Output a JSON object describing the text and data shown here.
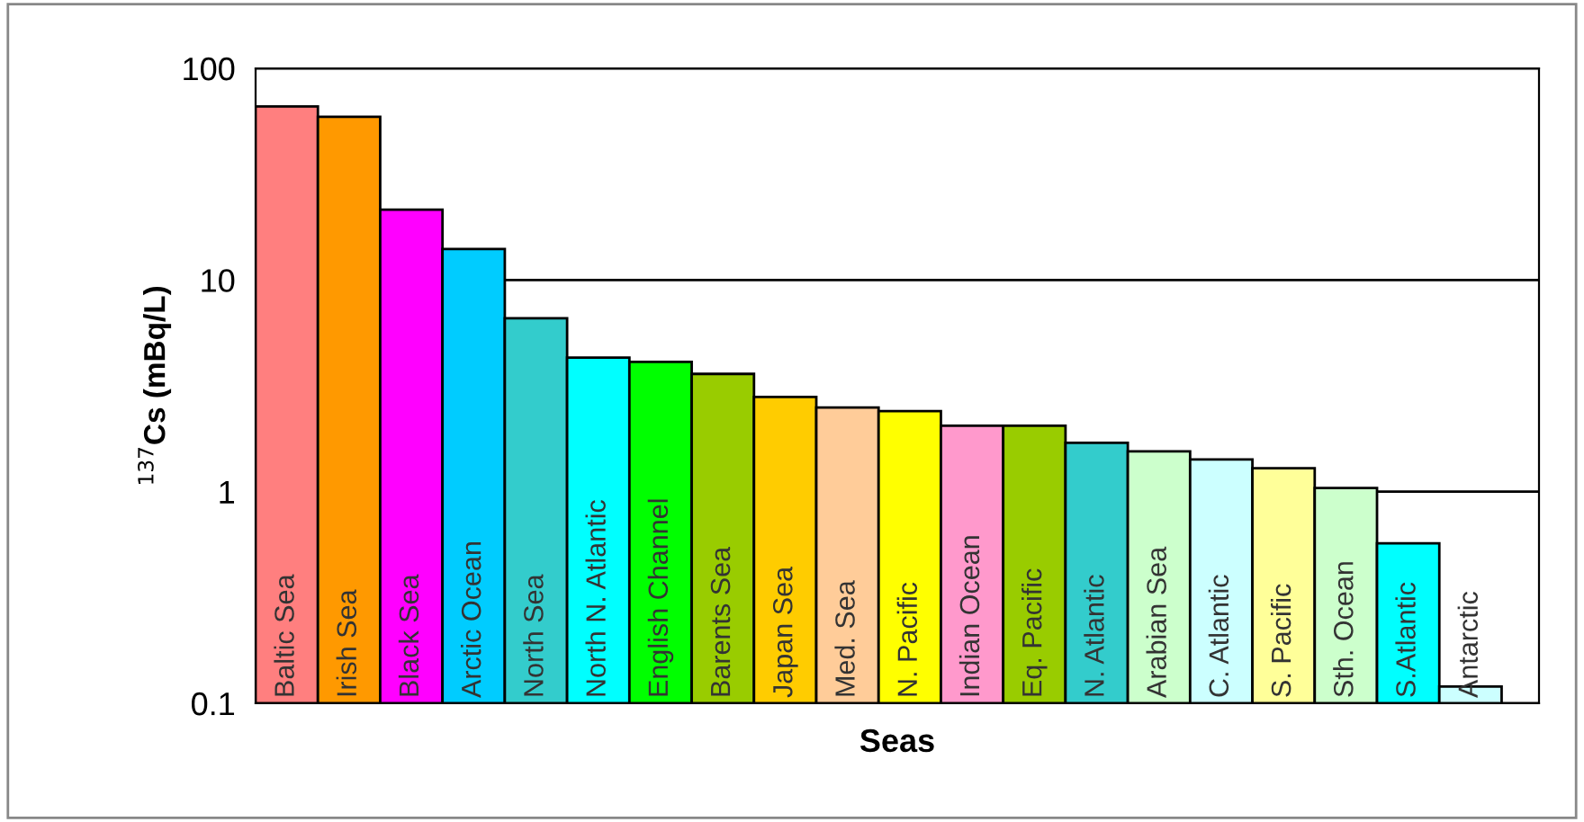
{
  "chart_data": {
    "type": "bar",
    "xlabel": "Seas",
    "ylabel": "$^{137}$Cs (mBq/L)",
    "categories": [
      "Baltic Sea",
      "Irish Sea",
      "Black Sea",
      "Arctic Ocean",
      "North Sea",
      "North N. Atlantic",
      "English Channel",
      "Barents Sea",
      "Japan Sea",
      "Med. Sea",
      "N. Pacific",
      "Indian Ocean",
      "Eq. Pacific",
      "N. Atlantic",
      "Arabian Sea",
      "C. Atlantic",
      "S. Pacific",
      "Sth. Ocean",
      "S.Atlantic",
      "Antarctic"
    ],
    "values": [
      66,
      59,
      21.5,
      14,
      6.6,
      4.3,
      4.1,
      3.6,
      2.8,
      2.5,
      2.4,
      2.05,
      2.05,
      1.7,
      1.55,
      1.42,
      1.29,
      1.04,
      0.57,
      0.12
    ],
    "colors": [
      "#ff7f7f",
      "#ff9900",
      "#ff00ff",
      "#00ccff",
      "#33cccc",
      "#00ffff",
      "#00ff00",
      "#99cc00",
      "#ffcc00",
      "#ffcc99",
      "#ffff00",
      "#ff99cc",
      "#99cc00",
      "#33cccc",
      "#ccffcc",
      "#ccffff",
      "#ffff99",
      "#ccffcc",
      "#00ffff",
      "#ccffff"
    ],
    "log": "y",
    "ylim": [
      0.1,
      100
    ],
    "yticks": [
      0.1,
      1,
      10,
      100
    ],
    "grid": "y",
    "legend": false
  }
}
